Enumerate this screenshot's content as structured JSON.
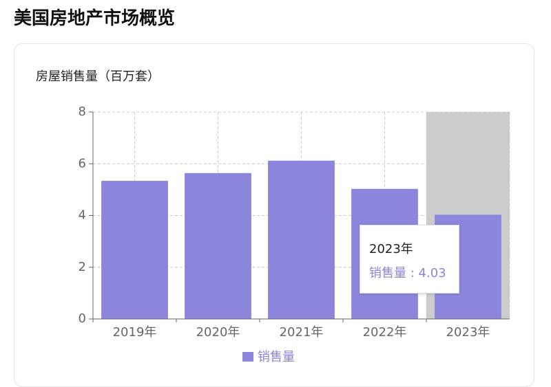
{
  "page_title": "美国房地产市场概览",
  "chart_data": {
    "type": "bar",
    "title": "房屋销售量（百万套）",
    "categories": [
      "2019年",
      "2020年",
      "2021年",
      "2022年",
      "2023年"
    ],
    "series": [
      {
        "name": "销售量",
        "color": "#8b86dc",
        "values": [
          5.34,
          5.64,
          6.12,
          5.03,
          4.03
        ]
      }
    ],
    "ylim": [
      0,
      8
    ],
    "yticks": [
      0,
      2,
      4,
      6,
      8
    ],
    "grid": true,
    "legend": "bottom",
    "highlight": 4
  }
}
